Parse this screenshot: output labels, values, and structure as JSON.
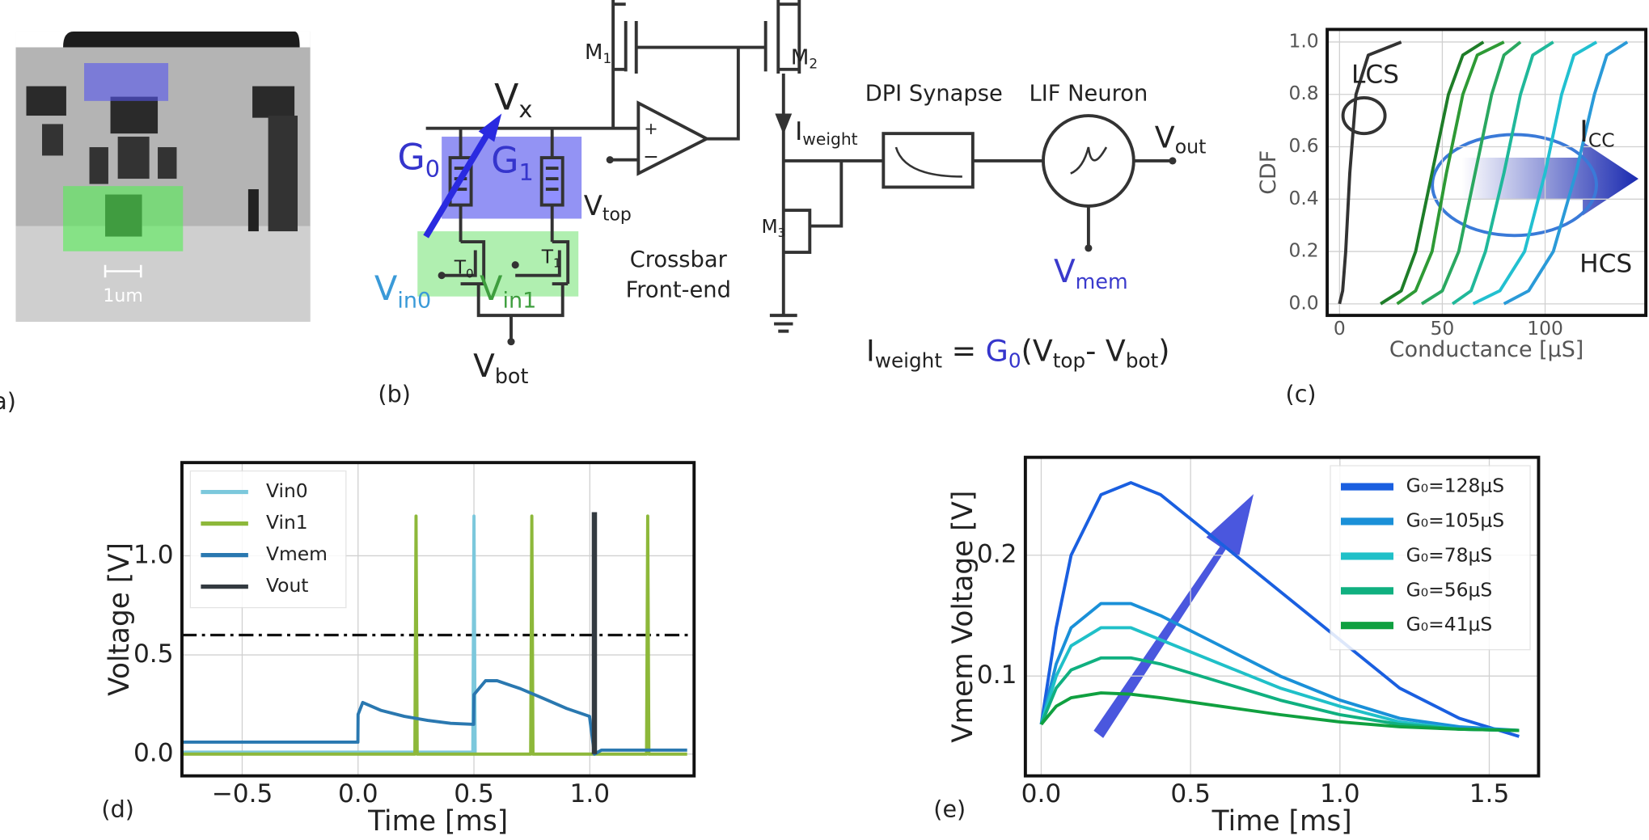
{
  "panels": [
    "(a)",
    "(b)",
    "(c)",
    "(d)",
    "(e)"
  ],
  "micrograph": {
    "scale": "1um"
  },
  "circuit": {
    "labels": [
      {
        "base": "V",
        "sub": "x"
      },
      {
        "base": "G",
        "sub": "0",
        "color": "#3535cc"
      },
      {
        "base": "G",
        "sub": "1",
        "color": "#3535cc"
      },
      {
        "base": "V",
        "sub": "top"
      },
      {
        "base": "V",
        "sub": "in0",
        "color": "#3a9ad8"
      },
      {
        "base": "V",
        "sub": "in1",
        "color": "#3e9e3e"
      },
      {
        "base": "V",
        "sub": "bot"
      },
      {
        "base": "T",
        "sub": "0"
      },
      {
        "base": "T",
        "sub": "1"
      },
      {
        "base": "M",
        "sub": "1"
      },
      {
        "base": "M",
        "sub": "2"
      },
      {
        "base": "M",
        "sub": "3"
      },
      {
        "base": "I",
        "sub": "weight"
      },
      {
        "base": "V",
        "sub": "out"
      },
      {
        "base": "V",
        "sub": "mem",
        "color": "#3a3acc"
      }
    ],
    "texts": [
      "DPI Synapse",
      "LIF Neuron",
      "Crossbar",
      "Front-end"
    ],
    "equation": [
      {
        "text": "I"
      },
      {
        "text": "weight",
        "sub": true
      },
      {
        "text": " = "
      },
      {
        "text": "G",
        "color": "#3535cc"
      },
      {
        "text": "0",
        "sub": true,
        "color": "#3535cc"
      },
      {
        "text": "(V"
      },
      {
        "text": "top",
        "sub": true
      },
      {
        "text": "- V"
      },
      {
        "text": "bot",
        "sub": true
      },
      {
        "text": ")"
      }
    ]
  },
  "chart_data": [
    {
      "type": "line",
      "xlabel": "Conductance [μS]",
      "ylabel": "CDF",
      "xlim": [
        -6,
        149
      ],
      "ylim": [
        -0.044,
        1.048
      ],
      "grid": true,
      "xticks": [
        0,
        50,
        100
      ],
      "yticks": [
        {
          "value": 0,
          "label": "0.0"
        },
        0.2,
        0.4,
        0.6,
        0.8,
        {
          "value": 1,
          "label": "1.0"
        }
      ],
      "annotations": [
        "LCS",
        "HCS",
        {
          "base": "I",
          "sub": "CC"
        }
      ],
      "series": [
        {
          "color": "#333333",
          "x": [
            0,
            1.5,
            3,
            5,
            8,
            14,
            30
          ],
          "values": [
            0,
            0.05,
            0.2,
            0.5,
            0.8,
            0.95,
            1
          ]
        },
        {
          "color": "#1e7d28",
          "x": [
            20,
            30,
            37,
            45,
            53,
            60,
            70
          ],
          "values": [
            0,
            0.05,
            0.2,
            0.5,
            0.8,
            0.95,
            1
          ]
        },
        {
          "color": "#2e9a35",
          "x": [
            28,
            37,
            45,
            52,
            60,
            67,
            80
          ],
          "values": [
            0,
            0.05,
            0.2,
            0.5,
            0.8,
            0.95,
            1
          ]
        },
        {
          "color": "#2aa860",
          "x": [
            40,
            50,
            58,
            66,
            74,
            80,
            88
          ],
          "values": [
            0,
            0.05,
            0.2,
            0.5,
            0.8,
            0.95,
            1
          ]
        },
        {
          "color": "#20b89a",
          "x": [
            55,
            64,
            71,
            80,
            88,
            94,
            104
          ],
          "values": [
            0,
            0.05,
            0.2,
            0.5,
            0.8,
            0.95,
            1
          ]
        },
        {
          "color": "#22c0d0",
          "x": [
            65,
            78,
            90,
            100,
            108,
            114,
            125
          ],
          "values": [
            0,
            0.05,
            0.2,
            0.5,
            0.8,
            0.95,
            1
          ]
        },
        {
          "color": "#2a9ad8",
          "x": [
            80,
            92,
            104,
            115,
            124,
            130,
            140
          ],
          "values": [
            0,
            0.05,
            0.2,
            0.5,
            0.8,
            0.95,
            1
          ]
        }
      ]
    },
    {
      "type": "line",
      "xlabel": "Time [ms]",
      "ylabel": "Voltage [V]",
      "xlim": [
        -0.76,
        1.45
      ],
      "ylim": [
        -0.11,
        1.47
      ],
      "grid": true,
      "legend": "upper left",
      "threshold": 0.6,
      "xticks": [
        {
          "value": -0.5,
          "label": "−0.5"
        },
        {
          "value": 0,
          "label": "0.0"
        },
        0.5,
        {
          "value": 1,
          "label": "1.0"
        }
      ],
      "yticks": [
        {
          "value": 0,
          "label": "0.0"
        },
        0.5,
        {
          "value": 1,
          "label": "1.0"
        }
      ],
      "series": [
        {
          "name": "Vin0",
          "color": "#7cc8dc",
          "x": [
            -0.76,
            0.495,
            0.5,
            0.505,
            -0.76
          ],
          "values": [
            0.01,
            0.01,
            1.2,
            0.01,
            0.01
          ]
        },
        {
          "name": "Vin1",
          "color": "#8db83a",
          "x": [
            -0.76,
            0.245,
            0.25,
            0.255,
            0.745,
            0.75,
            0.755,
            1.245,
            1.25,
            1.255,
            1.42
          ],
          "values": [
            0,
            0,
            1.2,
            0,
            0,
            1.2,
            0,
            0,
            1.2,
            0,
            0
          ]
        },
        {
          "name": "Vmem",
          "color": "#2a78b0",
          "x": [
            -0.76,
            -0.001,
            0,
            0.02,
            0.1,
            0.2,
            0.3,
            0.4,
            0.499,
            0.5,
            0.55,
            0.6,
            0.7,
            0.8,
            0.9,
            0.999,
            1.0,
            1.02,
            1.05,
            1.42
          ],
          "values": [
            0.06,
            0.06,
            0.2,
            0.26,
            0.22,
            0.19,
            0.17,
            0.155,
            0.15,
            0.3,
            0.37,
            0.37,
            0.33,
            0.28,
            0.23,
            0.19,
            0.18,
            0,
            0.02,
            0.02
          ]
        },
        {
          "name": "Vout",
          "color": "#333a40",
          "linewidth": 5,
          "x": [
            1.02,
            1.02
          ],
          "values": [
            0,
            1.22
          ]
        }
      ]
    },
    {
      "type": "line",
      "xlabel": "Time [ms]",
      "ylabel": "Vmem Voltage [V]",
      "xlim": [
        -0.053,
        1.665
      ],
      "ylim": [
        0.0174,
        0.281
      ],
      "grid": true,
      "legend": "upper right",
      "xticks": [
        {
          "value": 0,
          "label": "0.0"
        },
        0.5,
        {
          "value": 1,
          "label": "1.0"
        },
        1.5
      ],
      "yticks": [
        0.1,
        0.2
      ],
      "x": [
        0,
        0.05,
        0.1,
        0.2,
        0.3,
        0.4,
        0.6,
        0.8,
        1.0,
        1.2,
        1.4,
        1.6
      ],
      "series": [
        {
          "name": "G₀=128μS",
          "color": "#1a5fe0",
          "values": [
            0.06,
            0.14,
            0.2,
            0.25,
            0.26,
            0.25,
            0.21,
            0.17,
            0.13,
            0.09,
            0.065,
            0.05
          ]
        },
        {
          "name": "G₀=105μS",
          "color": "#1a90d8",
          "values": [
            0.06,
            0.11,
            0.14,
            0.16,
            0.16,
            0.15,
            0.125,
            0.1,
            0.08,
            0.065,
            0.058,
            0.055
          ]
        },
        {
          "name": "G₀=78μS",
          "color": "#20c0c8",
          "values": [
            0.06,
            0.1,
            0.125,
            0.14,
            0.14,
            0.13,
            0.11,
            0.09,
            0.075,
            0.062,
            0.056,
            0.055
          ]
        },
        {
          "name": "G₀=56μS",
          "color": "#10b080",
          "values": [
            0.06,
            0.09,
            0.105,
            0.115,
            0.115,
            0.11,
            0.095,
            0.08,
            0.068,
            0.06,
            0.056,
            0.055
          ]
        },
        {
          "name": "G₀=41μS",
          "color": "#10a040",
          "values": [
            0.06,
            0.075,
            0.082,
            0.086,
            0.085,
            0.082,
            0.075,
            0.068,
            0.062,
            0.058,
            0.056,
            0.055
          ]
        }
      ]
    }
  ]
}
